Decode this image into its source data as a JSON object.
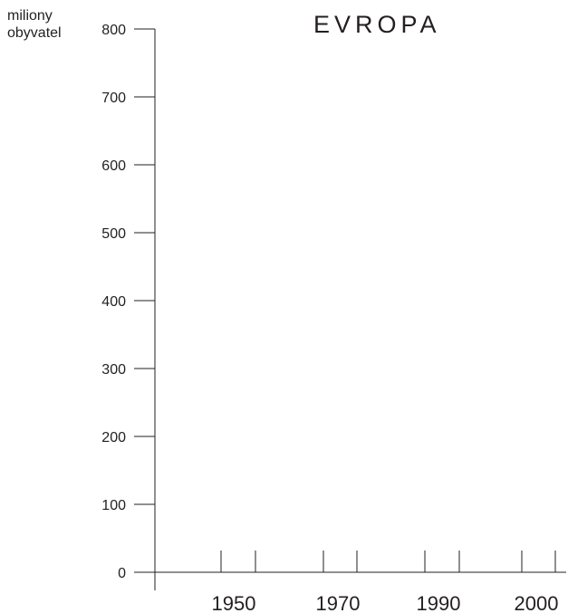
{
  "chart_data": {
    "type": "bar",
    "title": "EVROPA",
    "ylabel": [
      "miliony",
      "obyvatel"
    ],
    "xlabel": "",
    "categories": [
      "1950",
      "1970",
      "1990",
      "2000"
    ],
    "values": [
      0,
      0,
      0,
      0
    ],
    "ylim": [
      0,
      800
    ],
    "yticks": [
      0,
      100,
      200,
      300,
      400,
      500,
      600,
      700,
      800
    ],
    "grid": false,
    "legend": "none"
  }
}
